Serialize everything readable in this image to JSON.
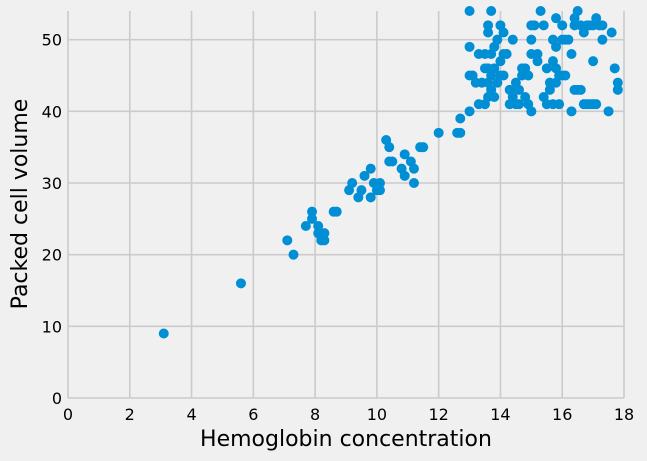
{
  "chart_data": {
    "type": "scatter",
    "title": "",
    "xlabel": "Hemoglobin concentration",
    "ylabel": "Packed cell volume",
    "xlim": [
      0,
      18
    ],
    "ylim": [
      0,
      54
    ],
    "xticks": [
      0,
      2,
      4,
      6,
      8,
      10,
      12,
      14,
      16,
      18
    ],
    "yticks": [
      0,
      10,
      20,
      30,
      40,
      50
    ],
    "grid": true,
    "marker_color": "#008fd5",
    "background_color": "#f0f0f0",
    "grid_color": "#cbcbcb",
    "points": [
      [
        3.1,
        9
      ],
      [
        5.6,
        16
      ],
      [
        7.1,
        22
      ],
      [
        7.3,
        20
      ],
      [
        7.7,
        24
      ],
      [
        7.9,
        26
      ],
      [
        7.9,
        25
      ],
      [
        8.1,
        24
      ],
      [
        8.1,
        23
      ],
      [
        8.2,
        22
      ],
      [
        8.3,
        23
      ],
      [
        8.3,
        22
      ],
      [
        8.6,
        26
      ],
      [
        8.7,
        26
      ],
      [
        9.1,
        29
      ],
      [
        9.2,
        30
      ],
      [
        9.4,
        28
      ],
      [
        9.5,
        29
      ],
      [
        9.6,
        31
      ],
      [
        9.8,
        32
      ],
      [
        9.8,
        28
      ],
      [
        9.9,
        30
      ],
      [
        10.0,
        29
      ],
      [
        10.1,
        30
      ],
      [
        10.1,
        29
      ],
      [
        10.3,
        36
      ],
      [
        10.4,
        35
      ],
      [
        10.4,
        33
      ],
      [
        10.5,
        33
      ],
      [
        10.8,
        32
      ],
      [
        10.9,
        34
      ],
      [
        10.9,
        31
      ],
      [
        11.1,
        33
      ],
      [
        11.2,
        32
      ],
      [
        11.2,
        30
      ],
      [
        11.4,
        35
      ],
      [
        11.5,
        35
      ],
      [
        12.0,
        37
      ],
      [
        12.6,
        37
      ],
      [
        12.7,
        39
      ],
      [
        12.7,
        37
      ],
      [
        13.0,
        54
      ],
      [
        13.0,
        49
      ],
      [
        13.0,
        45
      ],
      [
        13.0,
        40
      ],
      [
        13.1,
        45
      ],
      [
        13.2,
        44
      ],
      [
        13.3,
        48
      ],
      [
        13.3,
        41
      ],
      [
        13.4,
        44
      ],
      [
        13.5,
        48
      ],
      [
        13.5,
        46
      ],
      [
        13.5,
        41
      ],
      [
        13.6,
        52
      ],
      [
        13.6,
        51
      ],
      [
        13.6,
        46
      ],
      [
        13.6,
        44
      ],
      [
        13.6,
        42
      ],
      [
        13.7,
        54
      ],
      [
        13.7,
        48
      ],
      [
        13.7,
        45
      ],
      [
        13.7,
        43
      ],
      [
        13.8,
        49
      ],
      [
        13.8,
        46
      ],
      [
        13.8,
        42
      ],
      [
        13.9,
        50
      ],
      [
        13.9,
        44
      ],
      [
        14.0,
        52
      ],
      [
        14.0,
        47
      ],
      [
        14.0,
        45
      ],
      [
        14.1,
        51
      ],
      [
        14.1,
        48
      ],
      [
        14.1,
        45
      ],
      [
        14.2,
        48
      ],
      [
        14.3,
        43
      ],
      [
        14.3,
        41
      ],
      [
        14.4,
        50
      ],
      [
        14.4,
        42
      ],
      [
        14.5,
        44
      ],
      [
        14.5,
        41
      ],
      [
        14.6,
        43
      ],
      [
        14.6,
        41
      ],
      [
        14.7,
        46
      ],
      [
        14.7,
        45
      ],
      [
        14.8,
        46
      ],
      [
        14.8,
        42
      ],
      [
        14.9,
        45
      ],
      [
        14.9,
        41
      ],
      [
        15.0,
        52
      ],
      [
        15.0,
        50
      ],
      [
        15.0,
        48
      ],
      [
        15.0,
        40
      ],
      [
        15.1,
        52
      ],
      [
        15.2,
        48
      ],
      [
        15.2,
        47
      ],
      [
        15.3,
        54
      ],
      [
        15.4,
        52
      ],
      [
        15.4,
        42
      ],
      [
        15.5,
        46
      ],
      [
        15.5,
        41
      ],
      [
        15.6,
        44
      ],
      [
        15.6,
        43
      ],
      [
        15.7,
        50
      ],
      [
        15.7,
        47
      ],
      [
        15.7,
        41
      ],
      [
        15.8,
        53
      ],
      [
        15.8,
        49
      ],
      [
        15.8,
        46
      ],
      [
        15.8,
        44
      ],
      [
        15.9,
        45
      ],
      [
        15.9,
        41
      ],
      [
        16.0,
        52
      ],
      [
        16.0,
        50
      ],
      [
        16.0,
        45
      ],
      [
        16.1,
        50
      ],
      [
        16.1,
        45
      ],
      [
        16.2,
        50
      ],
      [
        16.3,
        48
      ],
      [
        16.3,
        40
      ],
      [
        16.4,
        52
      ],
      [
        16.4,
        53
      ],
      [
        16.4,
        43
      ],
      [
        16.5,
        54
      ],
      [
        16.5,
        43
      ],
      [
        16.6,
        52
      ],
      [
        16.6,
        43
      ],
      [
        16.7,
        51
      ],
      [
        16.7,
        41
      ],
      [
        16.8,
        52
      ],
      [
        16.8,
        41
      ],
      [
        16.9,
        52
      ],
      [
        16.9,
        41
      ],
      [
        17.0,
        52
      ],
      [
        17.0,
        47
      ],
      [
        17.0,
        41
      ],
      [
        17.1,
        53
      ],
      [
        17.1,
        41
      ],
      [
        17.2,
        52
      ],
      [
        17.3,
        52
      ],
      [
        17.3,
        50
      ],
      [
        17.5,
        40
      ],
      [
        17.6,
        51
      ],
      [
        17.7,
        46
      ],
      [
        17.8,
        44
      ],
      [
        17.8,
        43
      ]
    ]
  }
}
